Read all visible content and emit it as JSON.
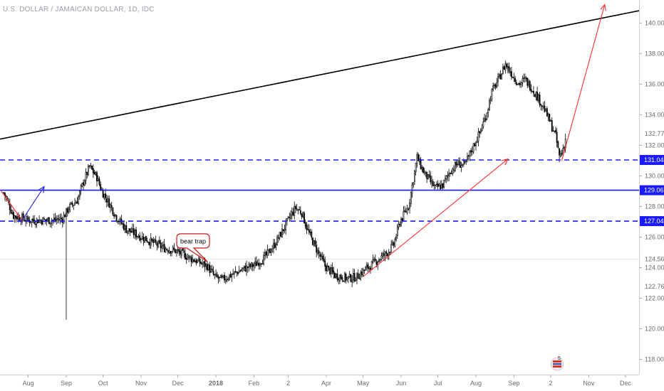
{
  "chart_data": {
    "type": "candlestick",
    "title": "U.S. DOLLAR / JAMAICAN DOLLAR, 1D, IDC",
    "ylim": [
      117.0,
      141.5
    ],
    "y_ticks": [
      118.0,
      120.0,
      122.0,
      124.0,
      126.0,
      128.0,
      130.0,
      132.0,
      134.0,
      136.0,
      138.0,
      140.0
    ],
    "x_ticks": [
      {
        "label": "Aug",
        "t": 20
      },
      {
        "label": "Sep",
        "t": 51
      },
      {
        "label": "Oct",
        "t": 81
      },
      {
        "label": "Nov",
        "t": 112
      },
      {
        "label": "Dec",
        "t": 142
      },
      {
        "label": "2018",
        "t": 173,
        "bold": true
      },
      {
        "label": "Feb",
        "t": 204
      },
      {
        "label": "2",
        "t": 232
      },
      {
        "label": "Apr",
        "t": 263
      },
      {
        "label": "May",
        "t": 293
      },
      {
        "label": "Jun",
        "t": 324
      },
      {
        "label": "Jul",
        "t": 354
      },
      {
        "label": "Aug",
        "t": 385
      },
      {
        "label": "Sep",
        "t": 416
      },
      {
        "label": "2",
        "t": 446
      },
      {
        "label": "Nov",
        "t": 477
      },
      {
        "label": "Dec",
        "t": 507
      }
    ],
    "x_range": [
      -3,
      518
    ],
    "price_anchors": [
      [
        0,
        128.9
      ],
      [
        8,
        127.4
      ],
      [
        20,
        127.1
      ],
      [
        30,
        127.1
      ],
      [
        40,
        127.1
      ],
      [
        48,
        127.2
      ],
      [
        53,
        127.9
      ],
      [
        60,
        128.4
      ],
      [
        65,
        129.6
      ],
      [
        70,
        130.6
      ],
      [
        76,
        129.9
      ],
      [
        80,
        129.0
      ],
      [
        86,
        128.2
      ],
      [
        92,
        127.3
      ],
      [
        100,
        126.5
      ],
      [
        110,
        126.1
      ],
      [
        120,
        125.7
      ],
      [
        130,
        125.3
      ],
      [
        140,
        125.1
      ],
      [
        150,
        124.7
      ],
      [
        158,
        124.4
      ],
      [
        166,
        124.1
      ],
      [
        172,
        123.4
      ],
      [
        178,
        123.2
      ],
      [
        185,
        123.5
      ],
      [
        195,
        123.9
      ],
      [
        205,
        124.2
      ],
      [
        212,
        124.6
      ],
      [
        220,
        125.4
      ],
      [
        228,
        126.5
      ],
      [
        234,
        127.4
      ],
      [
        238,
        127.9
      ],
      [
        243,
        127.6
      ],
      [
        248,
        126.4
      ],
      [
        255,
        125.2
      ],
      [
        262,
        124.1
      ],
      [
        270,
        123.5
      ],
      [
        280,
        123.3
      ],
      [
        288,
        123.4
      ],
      [
        295,
        123.9
      ],
      [
        305,
        124.5
      ],
      [
        313,
        125.0
      ],
      [
        318,
        125.5
      ],
      [
        323,
        127.0
      ],
      [
        330,
        128.0
      ],
      [
        334,
        129.8
      ],
      [
        337,
        131.2
      ],
      [
        342,
        130.3
      ],
      [
        348,
        129.6
      ],
      [
        352,
        129.2
      ],
      [
        358,
        129.4
      ],
      [
        364,
        130.3
      ],
      [
        370,
        130.8
      ],
      [
        376,
        130.7
      ],
      [
        382,
        131.8
      ],
      [
        388,
        132.8
      ],
      [
        393,
        133.9
      ],
      [
        398,
        135.5
      ],
      [
        404,
        136.4
      ],
      [
        409,
        137.3
      ],
      [
        414,
        136.7
      ],
      [
        420,
        136.0
      ],
      [
        425,
        136.3
      ],
      [
        430,
        135.8
      ],
      [
        435,
        135.2
      ],
      [
        440,
        134.5
      ],
      [
        445,
        133.6
      ],
      [
        450,
        132.6
      ],
      [
        453,
        131.3
      ],
      [
        455,
        131.5
      ],
      [
        458,
        132.4
      ]
    ],
    "spikes": [
      {
        "t": 51,
        "low": 120.6
      },
      {
        "t": 442,
        "high": 134.2
      },
      {
        "t": 453,
        "low": 130.9
      }
    ],
    "horizontal_levels": [
      {
        "value": 131.04,
        "label": "131.04",
        "style": "dashed",
        "color": "#1a1aff"
      },
      {
        "value": 129.06,
        "label": "129.06",
        "style": "solid",
        "color": "#1a1aff"
      },
      {
        "value": 127.04,
        "label": "127.04",
        "style": "dashed",
        "color": "#1a1aff"
      }
    ],
    "price_labels": [
      {
        "value": 132.77,
        "label": "132.77"
      },
      {
        "value": 124.56,
        "label": "124.56"
      },
      {
        "value": 122.76,
        "label": "122.76"
      }
    ],
    "trendline": {
      "from": [
        -3,
        132.4
      ],
      "to": [
        518,
        140.8
      ],
      "color": "#000000"
    },
    "arrows": [
      {
        "from": [
          -2,
          129.0
        ],
        "to": [
          15,
          127.1
        ],
        "color": "#ff3030",
        "head": false
      },
      {
        "from": [
          15,
          127.1
        ],
        "to": [
          33,
          129.3
        ],
        "color": "#2222dd",
        "head": true
      },
      {
        "from": [
          293,
          123.4
        ],
        "to": [
          411,
          131.1
        ],
        "color": "#ff3030",
        "head": true
      },
      {
        "from": [
          455,
          131.0
        ],
        "to": [
          490,
          141.2
        ],
        "color": "#ff3030",
        "head": true
      }
    ],
    "annotations": [
      {
        "text": "bear trap",
        "t": 155,
        "value": 125.7,
        "pointer_t": 166,
        "pointer_value": 124.4
      }
    ],
    "colors": {
      "candle": "#000000",
      "axis_text": "#6b6b6b",
      "level_line": "#1a1aff",
      "trendline": "#000000",
      "arrow_red": "#ff3030",
      "arrow_blue": "#2222dd",
      "grid": "#e3e3e3",
      "highlight_line": "#cfcfcf"
    },
    "grid": false,
    "legend": "none"
  },
  "watermark": {
    "icon": "tradingview-flag-icon",
    "badge": "5"
  }
}
